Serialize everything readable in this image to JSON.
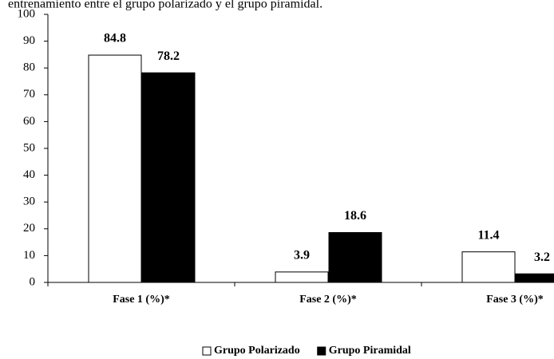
{
  "chart_data": {
    "type": "bar",
    "title": "entrenamiento entre el grupo polarizado y el grupo piramidal.",
    "categories": [
      "Fase 1 (%)*",
      "Fase 2 (%)*",
      "Fase 3 (%)*"
    ],
    "series": [
      {
        "name": "Grupo Polarizado",
        "color": "#ffffff",
        "values": [
          84.8,
          3.9,
          11.4
        ]
      },
      {
        "name": "Grupo Piramidal",
        "color": "#000000",
        "values": [
          78.2,
          18.6,
          3.2
        ]
      }
    ],
    "ylim": [
      0,
      100
    ],
    "yticks": [
      0,
      10,
      20,
      30,
      40,
      50,
      60,
      70,
      80,
      90,
      100
    ],
    "grid": false,
    "legend": "bottom"
  }
}
